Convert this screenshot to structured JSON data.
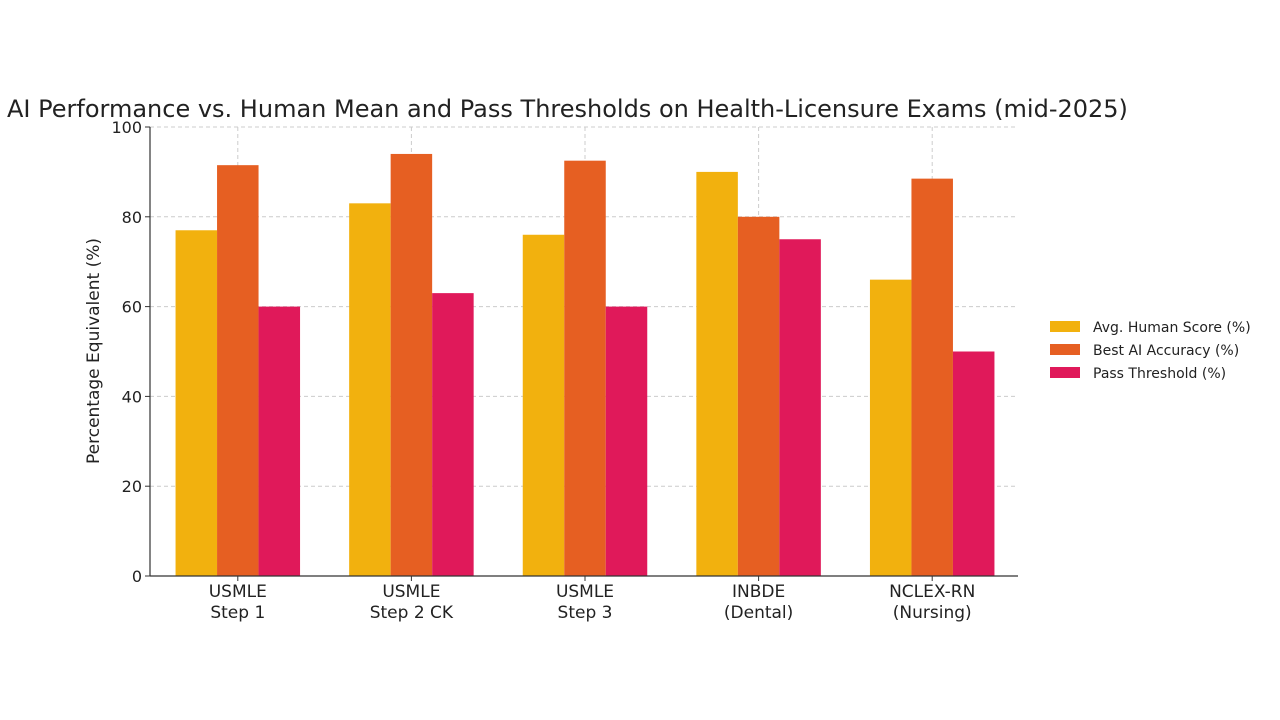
{
  "chart_data": {
    "type": "bar",
    "title": "AI Performance vs. Human Mean and Pass Thresholds on Health-Licensure Exams (mid-2025)",
    "xlabel": "",
    "ylabel": "Percentage Equivalent (%)",
    "ylim": [
      0,
      100
    ],
    "yticks": [
      0,
      20,
      40,
      60,
      80,
      100
    ],
    "grid": true,
    "legend_position": "right",
    "categories": [
      [
        "USMLE",
        "Step 1"
      ],
      [
        "USMLE",
        "Step 2 CK"
      ],
      [
        "USMLE",
        "Step 3"
      ],
      [
        "INBDE",
        "(Dental)"
      ],
      [
        "NCLEX-RN",
        "(Nursing)"
      ]
    ],
    "series": [
      {
        "name": "Avg. Human Score (%)",
        "color": "#F2B10E",
        "values": [
          77,
          83,
          76,
          90,
          66
        ]
      },
      {
        "name": "Best AI Accuracy (%)",
        "color": "#E65F22",
        "values": [
          91.5,
          94,
          92.5,
          80,
          88.5
        ]
      },
      {
        "name": "Pass Threshold (%)",
        "color": "#E0195A",
        "values": [
          60,
          63,
          60,
          75,
          50
        ]
      }
    ]
  }
}
